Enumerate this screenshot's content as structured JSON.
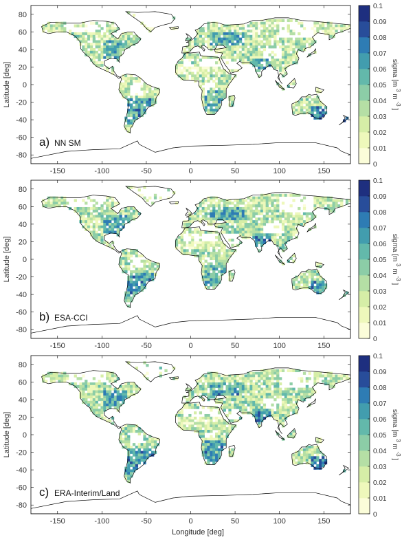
{
  "figure": {
    "xlabel": "Longitude [deg]",
    "ylabel": "Latitude [deg]",
    "colorbar_label": "sigma [m",
    "colorbar_sup1": "3",
    "colorbar_mid": " m",
    "colorbar_sup2": "-3",
    "colorbar_end": "]"
  },
  "chart_data": [
    {
      "type": "heatmap",
      "panel_label": "a)",
      "panel_name": "NN SM",
      "xlim": [
        -180,
        180
      ],
      "ylim": [
        -90,
        90
      ],
      "xticks": [
        -150,
        -100,
        -50,
        0,
        50,
        100,
        150
      ],
      "yticks": [
        -80,
        -60,
        -40,
        -20,
        0,
        20,
        40,
        60,
        80
      ],
      "colorbar": {
        "min": 0,
        "max": 0.1,
        "ticks": [
          0,
          0.01,
          0.02,
          0.03,
          0.04,
          0.05,
          0.06,
          0.07,
          0.08,
          0.09,
          0.1
        ],
        "colors": [
          "#fbfdd9",
          "#eef8bb",
          "#d6eea7",
          "#b5dfa5",
          "#8ccda7",
          "#63b9ab",
          "#429dae",
          "#2e7cb4",
          "#284d9a",
          "#1e2f7f",
          "#0d1a4a"
        ]
      }
    },
    {
      "type": "heatmap",
      "panel_label": "b)",
      "panel_name": "ESA-CCI",
      "xlim": [
        -180,
        180
      ],
      "ylim": [
        -90,
        90
      ],
      "xticks": [
        -150,
        -100,
        -50,
        0,
        50,
        100,
        150
      ],
      "yticks": [
        -80,
        -60,
        -40,
        -20,
        0,
        20,
        40,
        60,
        80
      ],
      "colorbar": {
        "min": 0,
        "max": 0.1,
        "ticks": [
          0,
          0.01,
          0.02,
          0.03,
          0.04,
          0.05,
          0.06,
          0.07,
          0.08,
          0.09,
          0.1
        ],
        "colors": [
          "#fbfdd9",
          "#eef8bb",
          "#d6eea7",
          "#b5dfa5",
          "#8ccda7",
          "#63b9ab",
          "#429dae",
          "#2e7cb4",
          "#284d9a",
          "#1e2f7f",
          "#0d1a4a"
        ]
      }
    },
    {
      "type": "heatmap",
      "panel_label": "c)",
      "panel_name": "ERA-Interim/Land",
      "xlim": [
        -180,
        180
      ],
      "ylim": [
        -90,
        90
      ],
      "xticks": [
        -150,
        -100,
        -50,
        0,
        50,
        100,
        150
      ],
      "yticks": [
        -80,
        -60,
        -40,
        -20,
        0,
        20,
        40,
        60,
        80
      ],
      "colorbar": {
        "min": 0,
        "max": 0.1,
        "ticks": [
          0,
          0.01,
          0.02,
          0.03,
          0.04,
          0.05,
          0.06,
          0.07,
          0.08,
          0.09,
          0.1
        ],
        "colors": [
          "#fbfdd9",
          "#eef8bb",
          "#d6eea7",
          "#b5dfa5",
          "#8ccda7",
          "#63b9ab",
          "#429dae",
          "#2e7cb4",
          "#284d9a",
          "#1e2f7f",
          "#0d1a4a"
        ]
      }
    }
  ]
}
